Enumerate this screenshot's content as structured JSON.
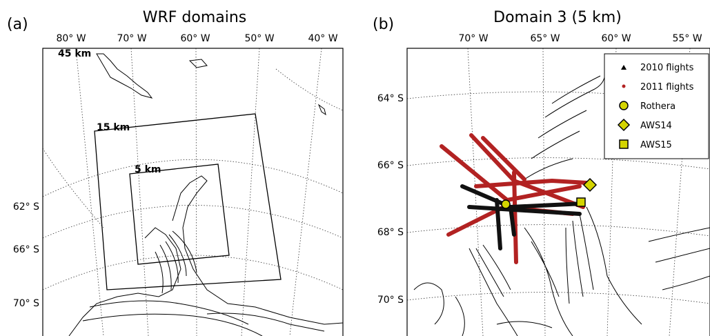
{
  "panel_a": {
    "label": "(a)",
    "title": "WRF domains",
    "lon_labels": [
      "80° W",
      "70° W",
      "60° W",
      "50° W",
      "40° W"
    ],
    "lat_labels": [
      "62° S",
      "66° S",
      "70° S"
    ],
    "domain_labels": [
      "45 km",
      "15 km",
      "5 km"
    ]
  },
  "panel_b": {
    "label": "(b)",
    "title": "Domain 3 (5 km)",
    "lon_labels": [
      "70° W",
      "65° W",
      "60° W",
      "55° W"
    ],
    "lat_labels": [
      "64° S",
      "66° S",
      "68° S",
      "70° S"
    ],
    "legend": [
      "2010 flights",
      "2011 flights",
      "Rothera",
      "AWS14",
      "AWS15"
    ]
  }
}
